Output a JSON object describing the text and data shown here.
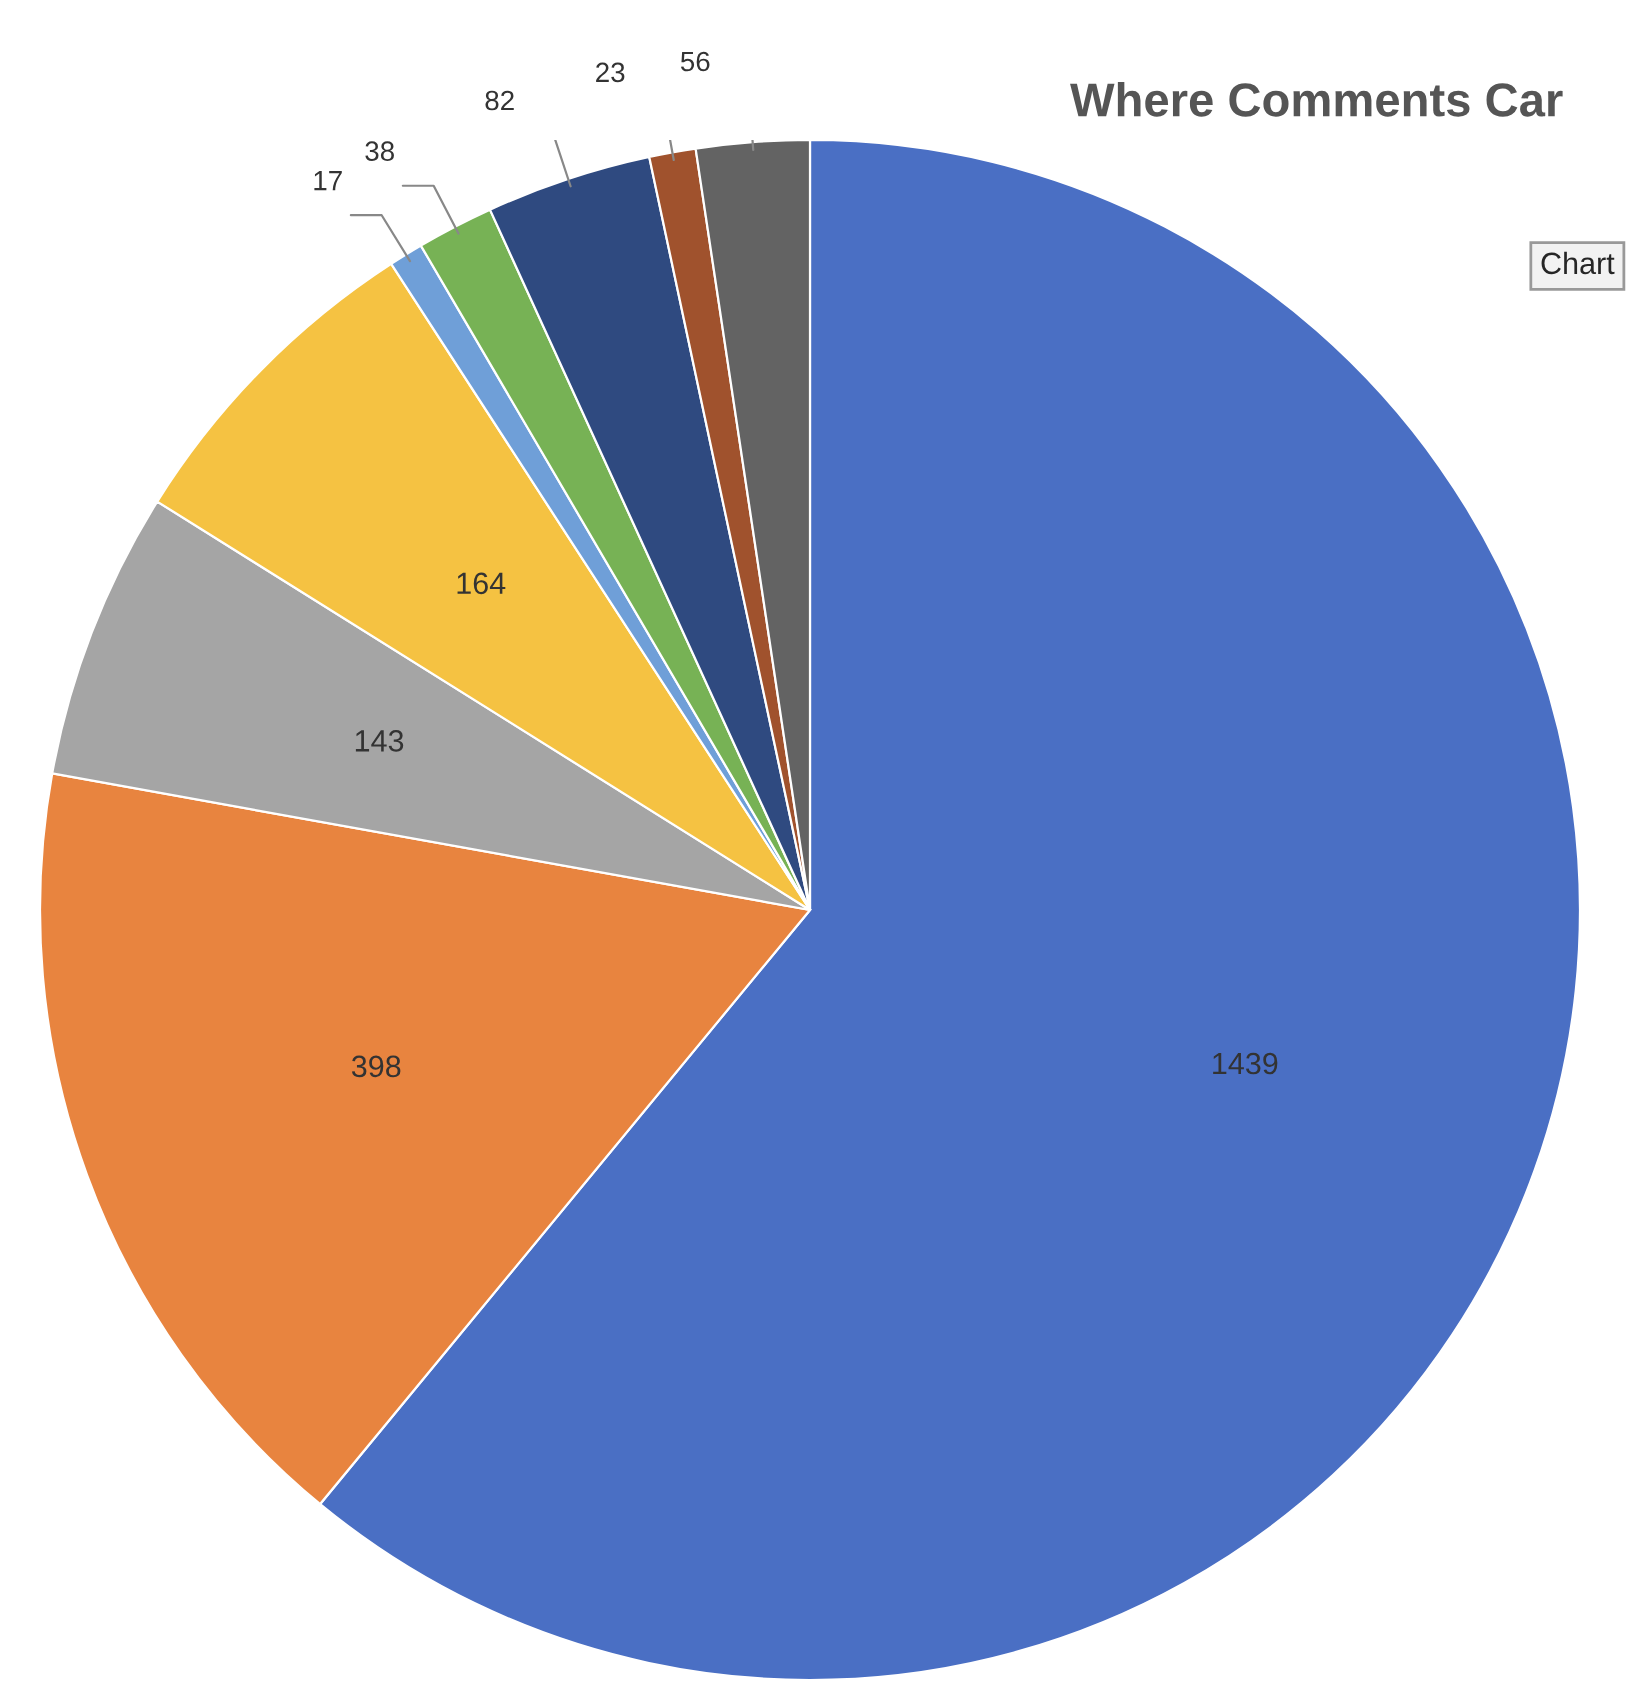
{
  "chart_data": {
    "type": "pie",
    "title": "Where Comments Car",
    "categories": [
      null,
      null,
      null,
      null,
      null,
      null,
      null,
      null,
      null
    ],
    "values": [
      1439,
      398,
      143,
      164,
      17,
      38,
      82,
      23,
      56
    ],
    "colors": [
      "#4a6fc4",
      "#e8843f",
      "#a5a5a5",
      "#f5c242",
      "#6f9fd8",
      "#77b255",
      "#2f4a80",
      "#a0522d",
      "#636363"
    ],
    "data_labels": true,
    "annotations": [
      "Chart"
    ]
  }
}
